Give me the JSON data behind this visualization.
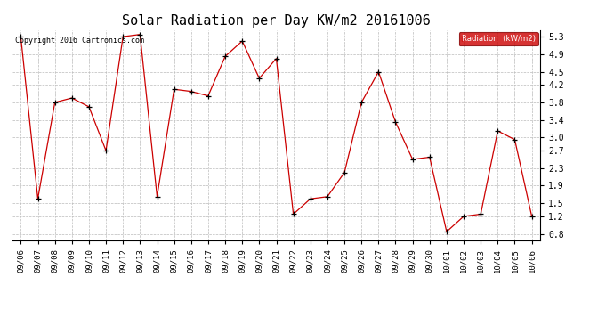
{
  "title": "Solar Radiation per Day KW/m2 20161006",
  "copyright": "Copyright 2016 Cartronics.com",
  "legend_label": "Radiation  (kW/m2)",
  "dates": [
    "09/06",
    "09/07",
    "09/08",
    "09/09",
    "09/10",
    "09/11",
    "09/12",
    "09/13",
    "09/14",
    "09/15",
    "09/16",
    "09/17",
    "09/18",
    "09/19",
    "09/20",
    "09/21",
    "09/22",
    "09/23",
    "09/24",
    "09/25",
    "09/26",
    "09/27",
    "09/28",
    "09/29",
    "09/30",
    "10/01",
    "10/02",
    "10/03",
    "10/04",
    "10/05",
    "10/06"
  ],
  "values": [
    5.3,
    1.6,
    3.8,
    3.9,
    3.7,
    2.7,
    5.3,
    5.35,
    1.65,
    4.1,
    4.05,
    3.95,
    4.85,
    5.2,
    4.35,
    4.8,
    1.25,
    1.6,
    1.65,
    2.2,
    3.8,
    4.5,
    3.35,
    2.5,
    2.55,
    0.85,
    1.2,
    1.25,
    3.15,
    2.95,
    1.2
  ],
  "line_color": "#cc0000",
  "marker_color": "#000000",
  "legend_bg": "#cc0000",
  "legend_text_color": "#ffffff",
  "bg_color": "#ffffff",
  "grid_color": "#bbbbbb",
  "ylim_min": 0.65,
  "ylim_max": 5.45,
  "yticks": [
    0.8,
    1.2,
    1.5,
    1.9,
    2.3,
    2.7,
    3.0,
    3.4,
    3.8,
    4.2,
    4.5,
    4.9,
    5.3
  ],
  "title_fontsize": 11,
  "tick_fontsize": 6.5,
  "copyright_fontsize": 6.0
}
